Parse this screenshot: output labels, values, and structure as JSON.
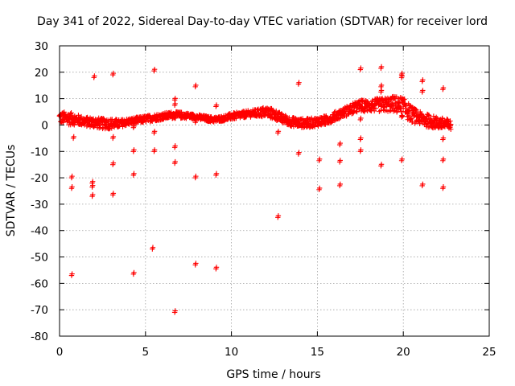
{
  "chart_data": {
    "type": "scatter",
    "title": "Day 341 of 2022, Sidereal Day-to-day VTEC variation (SDTVAR) for receiver lord",
    "xlabel": "GPS time / hours",
    "ylabel": "SDTVAR / TECUs",
    "xlim": [
      0,
      25
    ],
    "ylim": [
      -80,
      30
    ],
    "xticks": [
      0,
      5,
      10,
      15,
      20,
      25
    ],
    "yticks": [
      -80,
      -70,
      -60,
      -50,
      -40,
      -30,
      -20,
      -10,
      0,
      10,
      20,
      30
    ],
    "xtick_labels": [
      "0",
      "5",
      "10",
      "15",
      "20",
      "25"
    ],
    "ytick_labels": [
      "-80",
      "-70",
      "-60",
      "-50",
      "-40",
      "-30",
      "-20",
      "-10",
      "0",
      "10",
      "20",
      "30"
    ],
    "grid": true,
    "marker": "plus",
    "color": "#ff0000",
    "series": [
      {
        "name": "SDTVAR",
        "band": [
          {
            "x": 0.0,
            "lo": 0.5,
            "hi": 5.0
          },
          {
            "x": 0.5,
            "lo": 0.0,
            "hi": 5.0
          },
          {
            "x": 1.0,
            "lo": 0.0,
            "hi": 4.0
          },
          {
            "x": 1.5,
            "lo": -0.5,
            "hi": 3.0
          },
          {
            "x": 2.0,
            "lo": -1.0,
            "hi": 3.0
          },
          {
            "x": 2.5,
            "lo": -1.5,
            "hi": 2.5
          },
          {
            "x": 3.0,
            "lo": -1.5,
            "hi": 2.5
          },
          {
            "x": 3.5,
            "lo": -1.0,
            "hi": 2.0
          },
          {
            "x": 4.0,
            "lo": 0.0,
            "hi": 2.5
          },
          {
            "x": 4.5,
            "lo": 0.5,
            "hi": 3.0
          },
          {
            "x": 5.0,
            "lo": 1.0,
            "hi": 3.5
          },
          {
            "x": 5.5,
            "lo": 1.5,
            "hi": 4.0
          },
          {
            "x": 6.0,
            "lo": 2.0,
            "hi": 4.5
          },
          {
            "x": 6.5,
            "lo": 2.5,
            "hi": 5.0
          },
          {
            "x": 7.0,
            "lo": 2.5,
            "hi": 5.0
          },
          {
            "x": 7.5,
            "lo": 2.5,
            "hi": 4.5
          },
          {
            "x": 8.0,
            "lo": 2.0,
            "hi": 4.0
          },
          {
            "x": 8.5,
            "lo": 1.5,
            "hi": 3.5
          },
          {
            "x": 9.0,
            "lo": 1.0,
            "hi": 3.0
          },
          {
            "x": 9.5,
            "lo": 1.5,
            "hi": 3.5
          },
          {
            "x": 10.0,
            "lo": 2.0,
            "hi": 4.5
          },
          {
            "x": 10.5,
            "lo": 2.5,
            "hi": 5.0
          },
          {
            "x": 11.0,
            "lo": 3.0,
            "hi": 5.5
          },
          {
            "x": 11.5,
            "lo": 3.0,
            "hi": 6.0
          },
          {
            "x": 12.0,
            "lo": 3.0,
            "hi": 7.0
          },
          {
            "x": 12.5,
            "lo": 2.0,
            "hi": 6.0
          },
          {
            "x": 13.0,
            "lo": 0.5,
            "hi": 4.0
          },
          {
            "x": 13.5,
            "lo": -0.5,
            "hi": 3.0
          },
          {
            "x": 14.0,
            "lo": -1.0,
            "hi": 2.5
          },
          {
            "x": 14.5,
            "lo": -1.0,
            "hi": 2.5
          },
          {
            "x": 15.0,
            "lo": -0.5,
            "hi": 3.0
          },
          {
            "x": 15.5,
            "lo": 0.0,
            "hi": 3.5
          },
          {
            "x": 16.0,
            "lo": 1.5,
            "hi": 5.0
          },
          {
            "x": 16.5,
            "lo": 3.0,
            "hi": 6.5
          },
          {
            "x": 17.0,
            "lo": 4.0,
            "hi": 8.0
          },
          {
            "x": 17.5,
            "lo": 5.0,
            "hi": 9.5
          },
          {
            "x": 18.0,
            "lo": 5.0,
            "hi": 9.5
          },
          {
            "x": 18.5,
            "lo": 5.0,
            "hi": 10.0
          },
          {
            "x": 19.0,
            "lo": 5.0,
            "hi": 10.5
          },
          {
            "x": 19.5,
            "lo": 5.0,
            "hi": 11.0
          },
          {
            "x": 20.0,
            "lo": 3.0,
            "hi": 10.5
          },
          {
            "x": 20.5,
            "lo": 1.0,
            "hi": 7.0
          },
          {
            "x": 21.0,
            "lo": 0.0,
            "hi": 5.0
          },
          {
            "x": 21.5,
            "lo": -1.0,
            "hi": 4.0
          },
          {
            "x": 22.0,
            "lo": -1.5,
            "hi": 3.0
          },
          {
            "x": 22.5,
            "lo": -2.0,
            "hi": 2.5
          },
          {
            "x": 22.8,
            "lo": -2.0,
            "hi": 1.5
          }
        ],
        "outliers": [
          {
            "x": 0.7,
            "y": -57
          },
          {
            "x": 0.7,
            "y": -24
          },
          {
            "x": 0.7,
            "y": -20
          },
          {
            "x": 0.8,
            "y": -5
          },
          {
            "x": 2.0,
            "y": 18
          },
          {
            "x": 1.9,
            "y": -22
          },
          {
            "x": 1.9,
            "y": -23.5
          },
          {
            "x": 1.9,
            "y": -27
          },
          {
            "x": 3.1,
            "y": 19
          },
          {
            "x": 3.1,
            "y": -5
          },
          {
            "x": 3.1,
            "y": -15
          },
          {
            "x": 3.1,
            "y": -26.5
          },
          {
            "x": 4.3,
            "y": -1
          },
          {
            "x": 4.3,
            "y": -10
          },
          {
            "x": 4.3,
            "y": -19
          },
          {
            "x": 4.3,
            "y": -56.5
          },
          {
            "x": 5.5,
            "y": 20.5
          },
          {
            "x": 5.5,
            "y": -3
          },
          {
            "x": 5.5,
            "y": -10
          },
          {
            "x": 5.4,
            "y": -47
          },
          {
            "x": 6.7,
            "y": 9.5
          },
          {
            "x": 6.7,
            "y": 7.5
          },
          {
            "x": 6.7,
            "y": -8.5
          },
          {
            "x": 6.7,
            "y": -14.5
          },
          {
            "x": 6.7,
            "y": -71
          },
          {
            "x": 7.9,
            "y": 14.5
          },
          {
            "x": 7.9,
            "y": 1
          },
          {
            "x": 7.9,
            "y": -20
          },
          {
            "x": 7.9,
            "y": -53
          },
          {
            "x": 9.1,
            "y": 7
          },
          {
            "x": 9.1,
            "y": -19
          },
          {
            "x": 9.1,
            "y": -54.5
          },
          {
            "x": 12.7,
            "y": -3
          },
          {
            "x": 12.7,
            "y": -35
          },
          {
            "x": 13.9,
            "y": 15.5
          },
          {
            "x": 13.9,
            "y": -11
          },
          {
            "x": 15.1,
            "y": -13.5
          },
          {
            "x": 15.1,
            "y": -24.5
          },
          {
            "x": 16.3,
            "y": -7.5
          },
          {
            "x": 16.3,
            "y": -14
          },
          {
            "x": 16.3,
            "y": -23
          },
          {
            "x": 17.5,
            "y": 21
          },
          {
            "x": 17.5,
            "y": 2
          },
          {
            "x": 17.5,
            "y": -5.5
          },
          {
            "x": 17.5,
            "y": -10
          },
          {
            "x": 18.7,
            "y": 21.5
          },
          {
            "x": 18.7,
            "y": 14.5
          },
          {
            "x": 18.7,
            "y": 12.5
          },
          {
            "x": 18.7,
            "y": -15.5
          },
          {
            "x": 19.9,
            "y": 19
          },
          {
            "x": 19.9,
            "y": 18
          },
          {
            "x": 19.9,
            "y": 3
          },
          {
            "x": 19.9,
            "y": -13.5
          },
          {
            "x": 21.1,
            "y": 16.5
          },
          {
            "x": 21.1,
            "y": 12.5
          },
          {
            "x": 21.1,
            "y": -23
          },
          {
            "x": 22.3,
            "y": 13.5
          },
          {
            "x": 22.3,
            "y": -5.5
          },
          {
            "x": 22.3,
            "y": -13.5
          },
          {
            "x": 22.3,
            "y": -24
          }
        ]
      }
    ]
  }
}
